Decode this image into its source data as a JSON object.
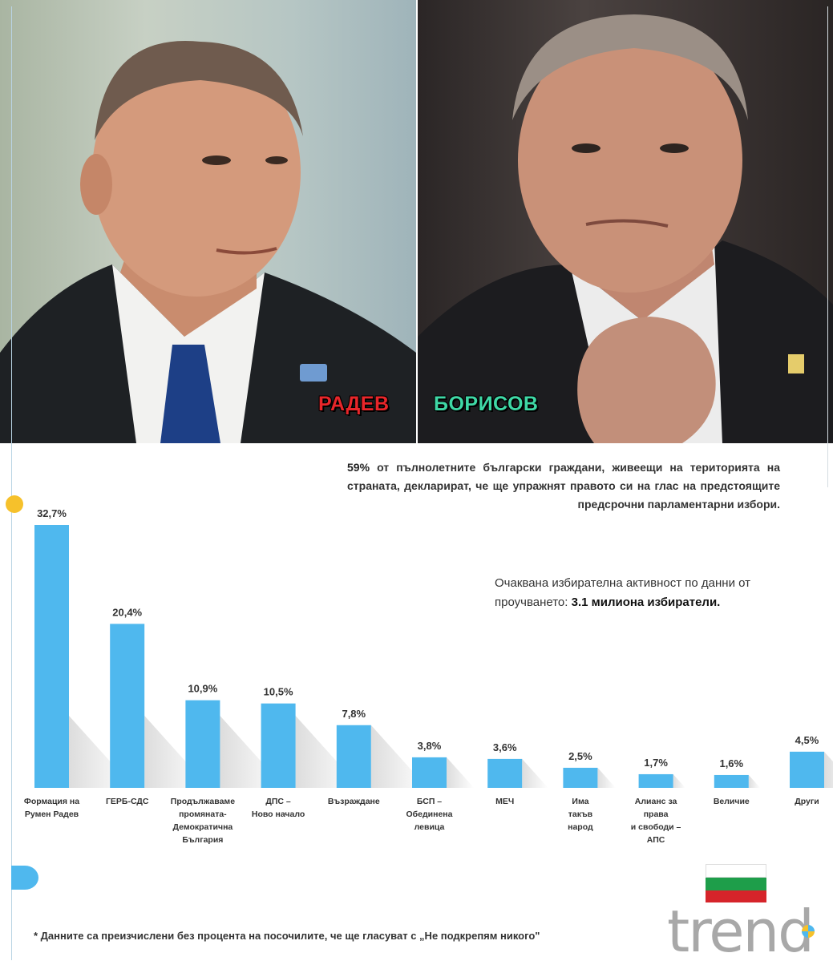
{
  "photos": {
    "left_label": "РАДЕВ",
    "right_label": "БОРИСОВ"
  },
  "notes": {
    "turnout_pct": "59%",
    "turnout_text": " от пълнолетните български граждани, живеещи на територията на страната, декларират, че ще упражнят правото си на глас на предстоящите предсрочни парламентарни избори.",
    "activity_text": "Очаквана избирателна активност по данни от проучването: ",
    "activity_value": "3.1 милиона избиратели.",
    "footnote": "* Данните са преизчислени без процента на посочилите, че ще гласуват с „Не подкрепям никого\""
  },
  "logo": {
    "text": "trend",
    "flag_colors": [
      "#ffffff",
      "#1e9e4a",
      "#d6242a"
    ]
  },
  "colors": {
    "bar": "#4fb8ee",
    "shadow": "#d9d9d9",
    "accent": "#f6c12b"
  },
  "chart_data": {
    "type": "bar",
    "categories": [
      "Формация на Румен Радев",
      "ГЕРБ-СДС",
      "Продължаваме промяната-Демократична България",
      "ДПС – Ново начало",
      "Възраждане",
      "БСП – Обединена левица",
      "МЕЧ",
      "Има такъв народ",
      "Алианс за права и свободи – АПС",
      "Величие",
      "Други"
    ],
    "category_lines": [
      [
        "Формация на",
        "Румен Радев"
      ],
      [
        "ГЕРБ-СДС"
      ],
      [
        "Продължаваме",
        "промяната-",
        "Демократична",
        "България"
      ],
      [
        "ДПС –",
        "Ново начало"
      ],
      [
        "Възраждане"
      ],
      [
        "БСП –",
        "Обединена",
        "левица"
      ],
      [
        "МЕЧ"
      ],
      [
        "Има",
        "такъв",
        "народ"
      ],
      [
        "Алианс за",
        "права",
        "и свободи –",
        "АПС"
      ],
      [
        "Величие"
      ],
      [
        "Други"
      ]
    ],
    "values": [
      32.7,
      20.4,
      10.9,
      10.5,
      7.8,
      3.8,
      3.6,
      2.5,
      1.7,
      1.6,
      4.5
    ],
    "labels": [
      "32,7%",
      "20,4%",
      "10,9%",
      "10,5%",
      "7,8%",
      "3,8%",
      "3,6%",
      "2,5%",
      "1,7%",
      "1,6%",
      "4,5%"
    ],
    "ylim": [
      0,
      32.7
    ],
    "grid": false,
    "title": "",
    "xlabel": "",
    "ylabel": ""
  }
}
